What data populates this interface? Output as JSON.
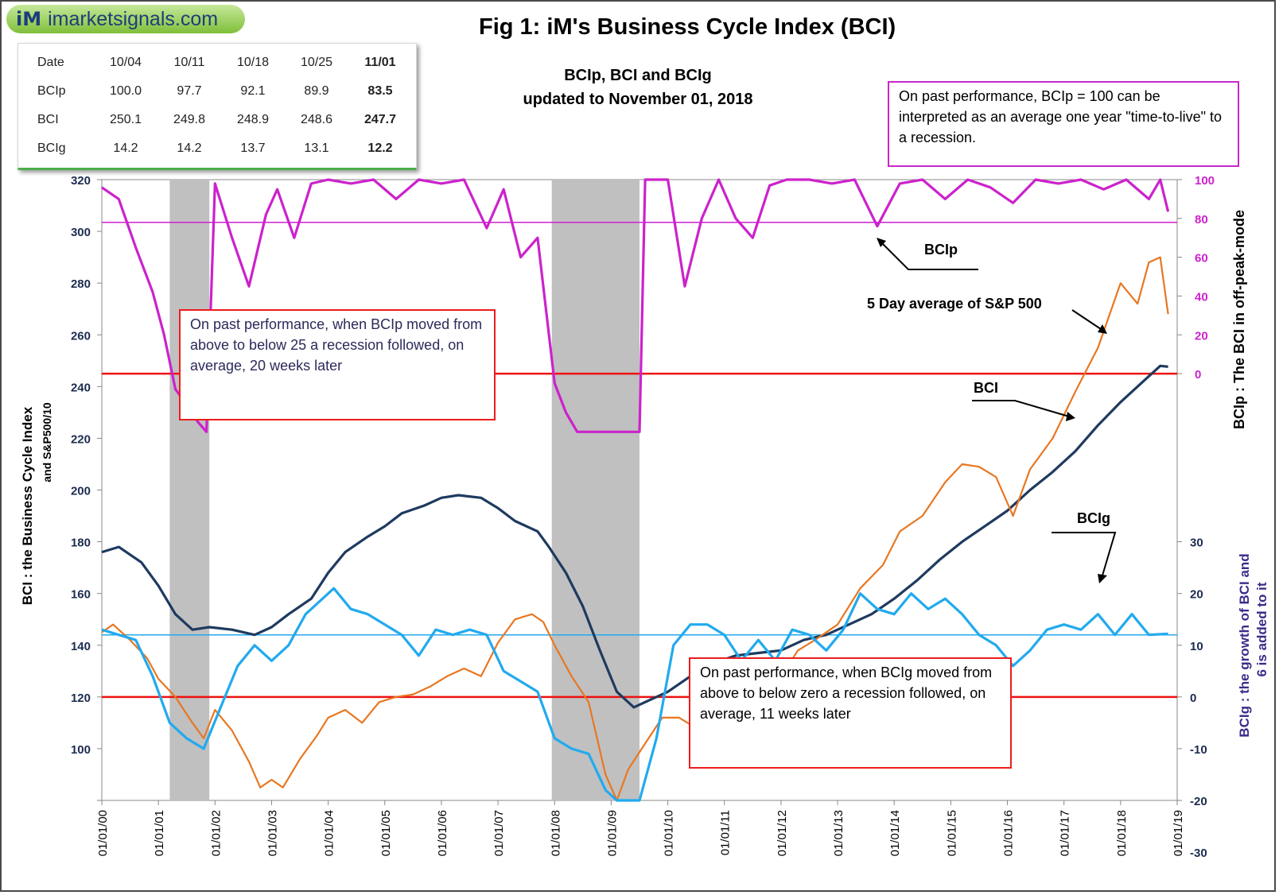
{
  "logo": {
    "mark": "iM",
    "text": "imarketsignals.com"
  },
  "title": "Fig 1:  iM's Business Cycle Index (BCI)",
  "subtitle": [
    "BCIp, BCI and BCIg",
    "updated to November 01, 2018"
  ],
  "summary_table": {
    "header": [
      "Date",
      "10/04",
      "10/11",
      "10/18",
      "10/25",
      "11/01"
    ],
    "rows": [
      [
        "BCIp",
        "100.0",
        "97.7",
        "92.1",
        "89.9",
        "83.5"
      ],
      [
        "BCI",
        "250.1",
        "249.8",
        "248.9",
        "248.6",
        "247.7"
      ],
      [
        "BCIg",
        "14.2",
        "14.2",
        "13.7",
        "13.1",
        "12.2"
      ]
    ]
  },
  "notes": {
    "top_right": "On past performance, BCIp = 100 can be interpreted as an average one year \"time-to-live\" to a recession.",
    "left": "On past performance,  when BCIp moved from above to below 25 a recession followed, on average, 20 weeks later",
    "bottom": "On past performance,  when BCIg moved from above to below zero a recession followed, on average, 11 weeks later"
  },
  "colors": {
    "bcip": "#cc22cc",
    "bci": "#1f3a5f",
    "bcig": "#22aaee",
    "sp500": "#e87722",
    "threshold": "#ee1111",
    "recession": "#c0c0c0"
  },
  "chart_data": {
    "type": "line",
    "x_axis": {
      "ticks": [
        "01/01/00",
        "01/01/01",
        "01/01/02",
        "01/01/03",
        "01/01/04",
        "01/01/05",
        "01/01/06",
        "01/01/07",
        "01/01/08",
        "01/01/09",
        "01/01/10",
        "01/01/11",
        "01/01/12",
        "01/01/13",
        "01/01/14",
        "01/01/15",
        "01/01/16",
        "01/01/17",
        "01/01/18",
        "01/01/19"
      ],
      "range": [
        2000.0,
        2019.0
      ]
    },
    "y_left": {
      "label": "BCI : the Business Cycle  Index",
      "label2": "and  S&P500/10",
      "range": [
        80,
        320
      ],
      "ticks": [
        "100",
        "120",
        "140",
        "160",
        "180",
        "200",
        "220",
        "240",
        "260",
        "280",
        "300",
        "320"
      ]
    },
    "y_right_top": {
      "label": "BCIp :  The BCI in off-peak-mode",
      "range": [
        0,
        100
      ],
      "ticks": [
        "0",
        "20",
        "40",
        "60",
        "80",
        "100"
      ]
    },
    "y_right_bottom": {
      "label": "BCIg :  the growth of BCI and",
      "label2": "6 is added to it",
      "range": [
        -30,
        30
      ],
      "ticks": [
        "-30",
        "-20",
        "-10",
        "0",
        "10",
        "20",
        "30"
      ]
    },
    "recessions": [
      [
        2001.2,
        2001.9
      ],
      [
        2007.95,
        2009.5
      ]
    ],
    "horizontal_lines": [
      {
        "name": "BCIp 84 line",
        "y_left": 303.5
      },
      {
        "name": "BCIp 25 threshold",
        "y_left": 245
      },
      {
        "name": "BCIg 12 line",
        "y_left": 144
      },
      {
        "name": "BCIg zero threshold",
        "y_left": 120
      }
    ],
    "annotations": [
      "BCIp",
      "5 Day average of  S&P 500",
      "BCI",
      "BCIg"
    ],
    "series": [
      {
        "name": "BCI",
        "axis": "left",
        "x": [
          2000.0,
          2000.3,
          2000.7,
          2001.0,
          2001.3,
          2001.6,
          2001.9,
          2002.3,
          2002.7,
          2003.0,
          2003.3,
          2003.7,
          2004.0,
          2004.3,
          2004.7,
          2005.0,
          2005.3,
          2005.7,
          2006.0,
          2006.3,
          2006.7,
          2007.0,
          2007.3,
          2007.7,
          2007.9,
          2008.2,
          2008.5,
          2008.8,
          2009.1,
          2009.4,
          2009.6,
          2010.0,
          2010.4,
          2010.8,
          2011.2,
          2011.6,
          2012.0,
          2012.4,
          2012.8,
          2013.2,
          2013.6,
          2014.0,
          2014.4,
          2014.8,
          2015.2,
          2015.6,
          2016.0,
          2016.4,
          2016.8,
          2017.2,
          2017.6,
          2018.0,
          2018.4,
          2018.7,
          2018.84
        ],
        "y": [
          176,
          178,
          172,
          163,
          152,
          146,
          147,
          146,
          144,
          147,
          152,
          158,
          168,
          176,
          182,
          186,
          191,
          194,
          197,
          198,
          197,
          193,
          188,
          184,
          178,
          168,
          155,
          138,
          122,
          116,
          118,
          122,
          128,
          133,
          136,
          137,
          138,
          142,
          144,
          148,
          152,
          158,
          165,
          173,
          180,
          186,
          192,
          200,
          207,
          215,
          225,
          234,
          242,
          248,
          247.7
        ]
      },
      {
        "name": "S&P 500 5 Day average",
        "axis": "left",
        "x": [
          2000.0,
          2000.2,
          2000.5,
          2000.8,
          2001.0,
          2001.3,
          2001.6,
          2001.8,
          2002.0,
          2002.3,
          2002.6,
          2002.8,
          2003.0,
          2003.2,
          2003.5,
          2003.8,
          2004.0,
          2004.3,
          2004.6,
          2004.9,
          2005.2,
          2005.5,
          2005.8,
          2006.1,
          2006.4,
          2006.7,
          2007.0,
          2007.3,
          2007.6,
          2007.8,
          2008.0,
          2008.3,
          2008.6,
          2008.9,
          2009.1,
          2009.3,
          2009.6,
          2009.9,
          2010.2,
          2010.5,
          2010.8,
          2011.1,
          2011.4,
          2011.7,
          2012.0,
          2012.3,
          2012.6,
          2013.0,
          2013.4,
          2013.8,
          2014.1,
          2014.5,
          2014.9,
          2015.2,
          2015.5,
          2015.8,
          2016.1,
          2016.4,
          2016.8,
          2017.2,
          2017.6,
          2018.0,
          2018.3,
          2018.5,
          2018.7,
          2018.84
        ],
        "y": [
          145,
          148,
          142,
          135,
          127,
          120,
          110,
          104,
          115,
          107,
          95,
          85,
          88,
          85,
          96,
          105,
          112,
          115,
          110,
          118,
          120,
          121,
          124,
          128,
          131,
          128,
          141,
          150,
          152,
          149,
          140,
          128,
          118,
          90,
          80,
          92,
          102,
          112,
          112,
          108,
          121,
          132,
          133,
          116,
          128,
          138,
          142,
          148,
          162,
          171,
          184,
          190,
          203,
          210,
          209,
          205,
          190,
          208,
          220,
          238,
          255,
          280,
          272,
          288,
          290,
          268
        ]
      },
      {
        "name": "BCIp",
        "axis": "right_top",
        "x": [
          2000.0,
          2000.3,
          2000.6,
          2000.9,
          2001.1,
          2001.3,
          2001.5,
          2001.7,
          2001.85,
          2002.0,
          2002.3,
          2002.6,
          2002.9,
          2003.1,
          2003.4,
          2003.7,
          2004.0,
          2004.4,
          2004.8,
          2005.2,
          2005.6,
          2006.0,
          2006.4,
          2006.8,
          2007.1,
          2007.4,
          2007.7,
          2008.0,
          2008.2,
          2008.4,
          2009.5,
          2009.6,
          2010.0,
          2010.3,
          2010.6,
          2010.9,
          2011.2,
          2011.5,
          2011.8,
          2012.1,
          2012.5,
          2012.9,
          2013.3,
          2013.7,
          2014.1,
          2014.5,
          2014.9,
          2015.3,
          2015.7,
          2016.1,
          2016.5,
          2016.9,
          2017.3,
          2017.7,
          2018.1,
          2018.5,
          2018.7,
          2018.84
        ],
        "y": [
          96,
          90,
          65,
          42,
          20,
          -8,
          -16,
          -25,
          -30,
          98,
          70,
          45,
          82,
          95,
          70,
          98,
          100,
          98,
          100,
          90,
          100,
          98,
          100,
          75,
          95,
          60,
          70,
          -5,
          -20,
          -30,
          -30,
          100,
          100,
          45,
          80,
          100,
          80,
          70,
          97,
          100,
          100,
          98,
          100,
          76,
          98,
          100,
          90,
          100,
          96,
          88,
          100,
          98,
          100,
          95,
          100,
          90,
          100,
          83.5
        ]
      },
      {
        "name": "BCIg",
        "axis": "right_bottom",
        "x": [
          2000.0,
          2000.3,
          2000.6,
          2000.9,
          2001.2,
          2001.5,
          2001.8,
          2002.1,
          2002.4,
          2002.7,
          2003.0,
          2003.3,
          2003.6,
          2003.9,
          2004.1,
          2004.4,
          2004.7,
          2005.0,
          2005.3,
          2005.6,
          2005.9,
          2006.2,
          2006.5,
          2006.8,
          2007.1,
          2007.4,
          2007.7,
          2008.0,
          2008.3,
          2008.6,
          2008.9,
          2009.1,
          2009.3,
          2009.5,
          2009.8,
          2010.1,
          2010.4,
          2010.7,
          2011.0,
          2011.3,
          2011.6,
          2011.9,
          2012.2,
          2012.5,
          2012.8,
          2013.1,
          2013.4,
          2013.7,
          2014.0,
          2014.3,
          2014.6,
          2014.9,
          2015.2,
          2015.5,
          2015.8,
          2016.1,
          2016.4,
          2016.7,
          2017.0,
          2017.3,
          2017.6,
          2017.9,
          2018.2,
          2018.5,
          2018.84
        ],
        "y": [
          13,
          12,
          11,
          4,
          -5,
          -8,
          -10,
          -2,
          6,
          10,
          7,
          10,
          16,
          19,
          21,
          17,
          16,
          14,
          12,
          8,
          13,
          12,
          13,
          12,
          5,
          3,
          1,
          -8,
          -10,
          -11,
          -18,
          -24,
          -29,
          -21,
          -8,
          10,
          14,
          14,
          12,
          7,
          11,
          7,
          13,
          12,
          9,
          13,
          20,
          17,
          16,
          20,
          17,
          19,
          16,
          12,
          10,
          6,
          9,
          13,
          14,
          13,
          16,
          12,
          16,
          12,
          12.2
        ]
      }
    ]
  }
}
